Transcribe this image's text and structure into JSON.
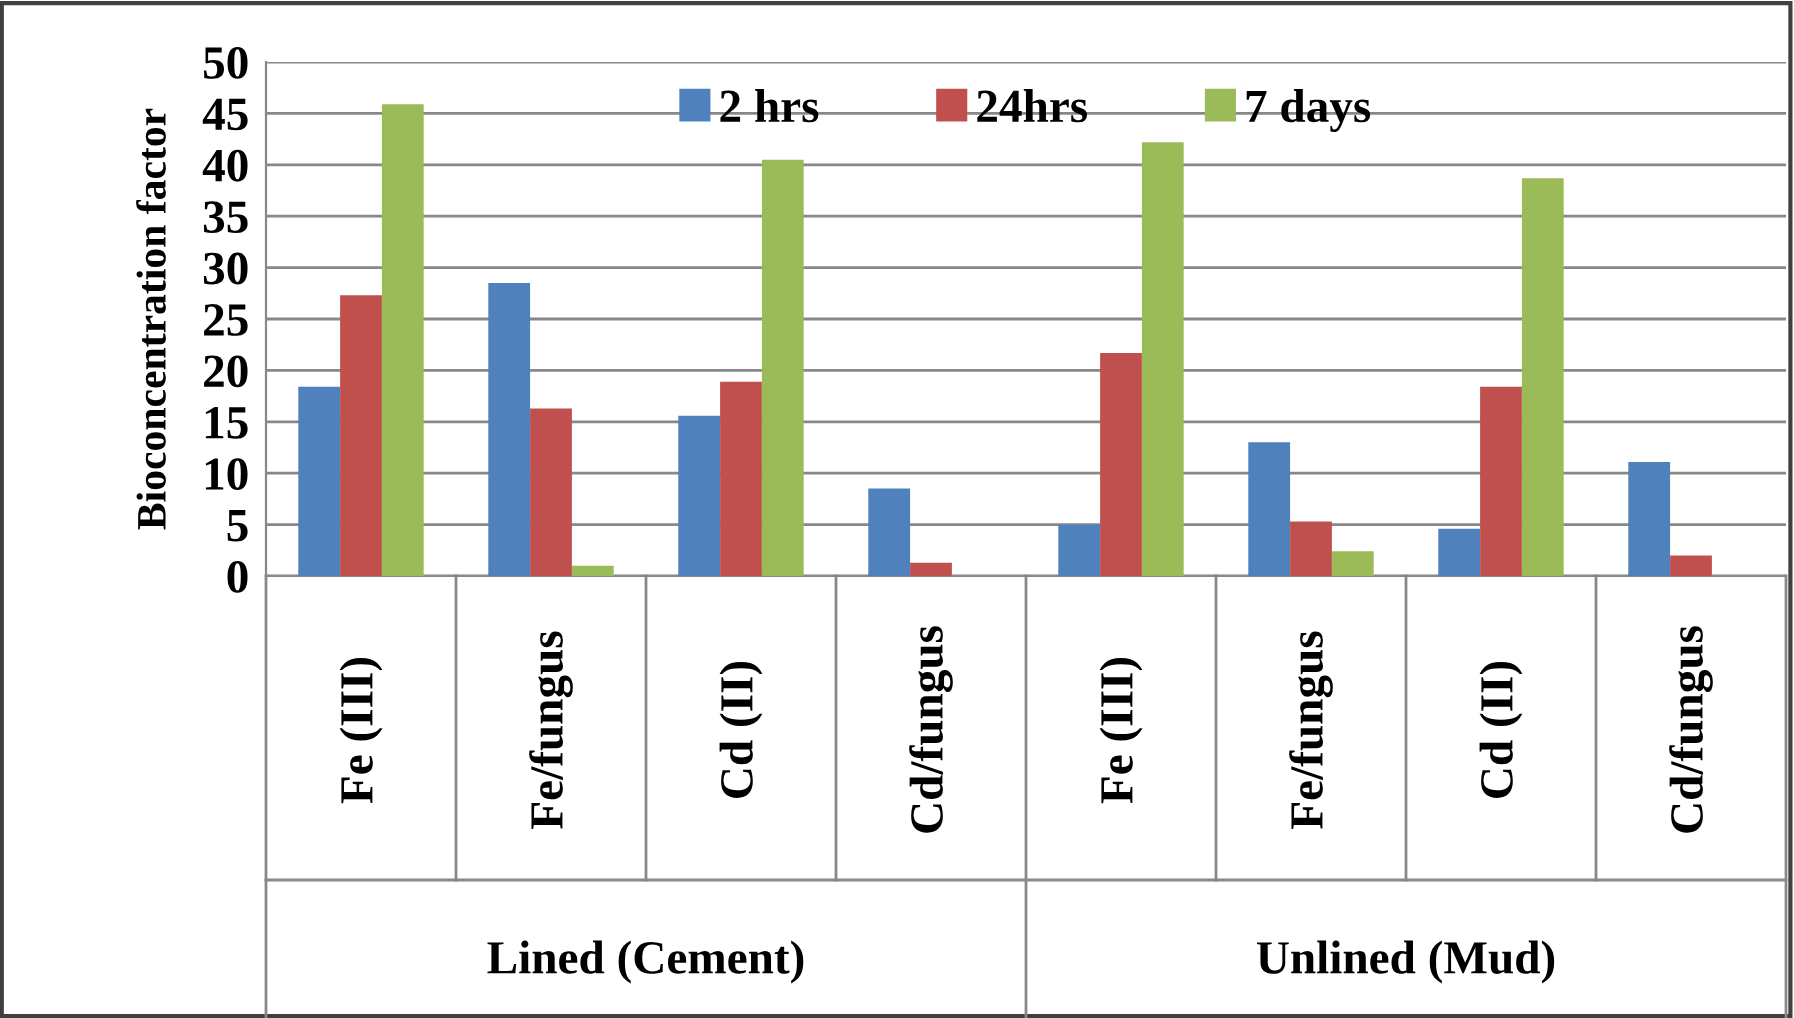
{
  "chart_data": {
    "type": "bar",
    "ylabel": "Bioconcentration factor",
    "categories": [
      "Fe (III)",
      "Fe/fungus",
      "Cd (II)",
      "Cd/fungus",
      "Fe (III)",
      "Fe/fungus",
      "Cd (II)",
      "Cd/fungus"
    ],
    "annotations": [
      "Lined (Cement)",
      "Unlined (Mud)"
    ],
    "series": [
      {
        "name": "2 hrs",
        "color": "#4f81bd",
        "values": [
          18.4,
          28.5,
          15.6,
          8.5,
          5.0,
          13.0,
          4.6,
          11.1
        ]
      },
      {
        "name": "24hrs",
        "color": "#c0504d",
        "values": [
          27.3,
          16.3,
          18.9,
          1.3,
          21.7,
          5.3,
          18.4,
          2.0
        ]
      },
      {
        "name": "7 days",
        "color": "#9bbb59",
        "values": [
          45.9,
          1.0,
          40.5,
          0,
          42.2,
          2.4,
          38.7,
          0
        ]
      }
    ],
    "ylim": [
      0,
      50
    ],
    "yticks": [
      0,
      5,
      10,
      15,
      20,
      25,
      30,
      35,
      40,
      45,
      50
    ],
    "grid": "y",
    "legend": "top"
  }
}
